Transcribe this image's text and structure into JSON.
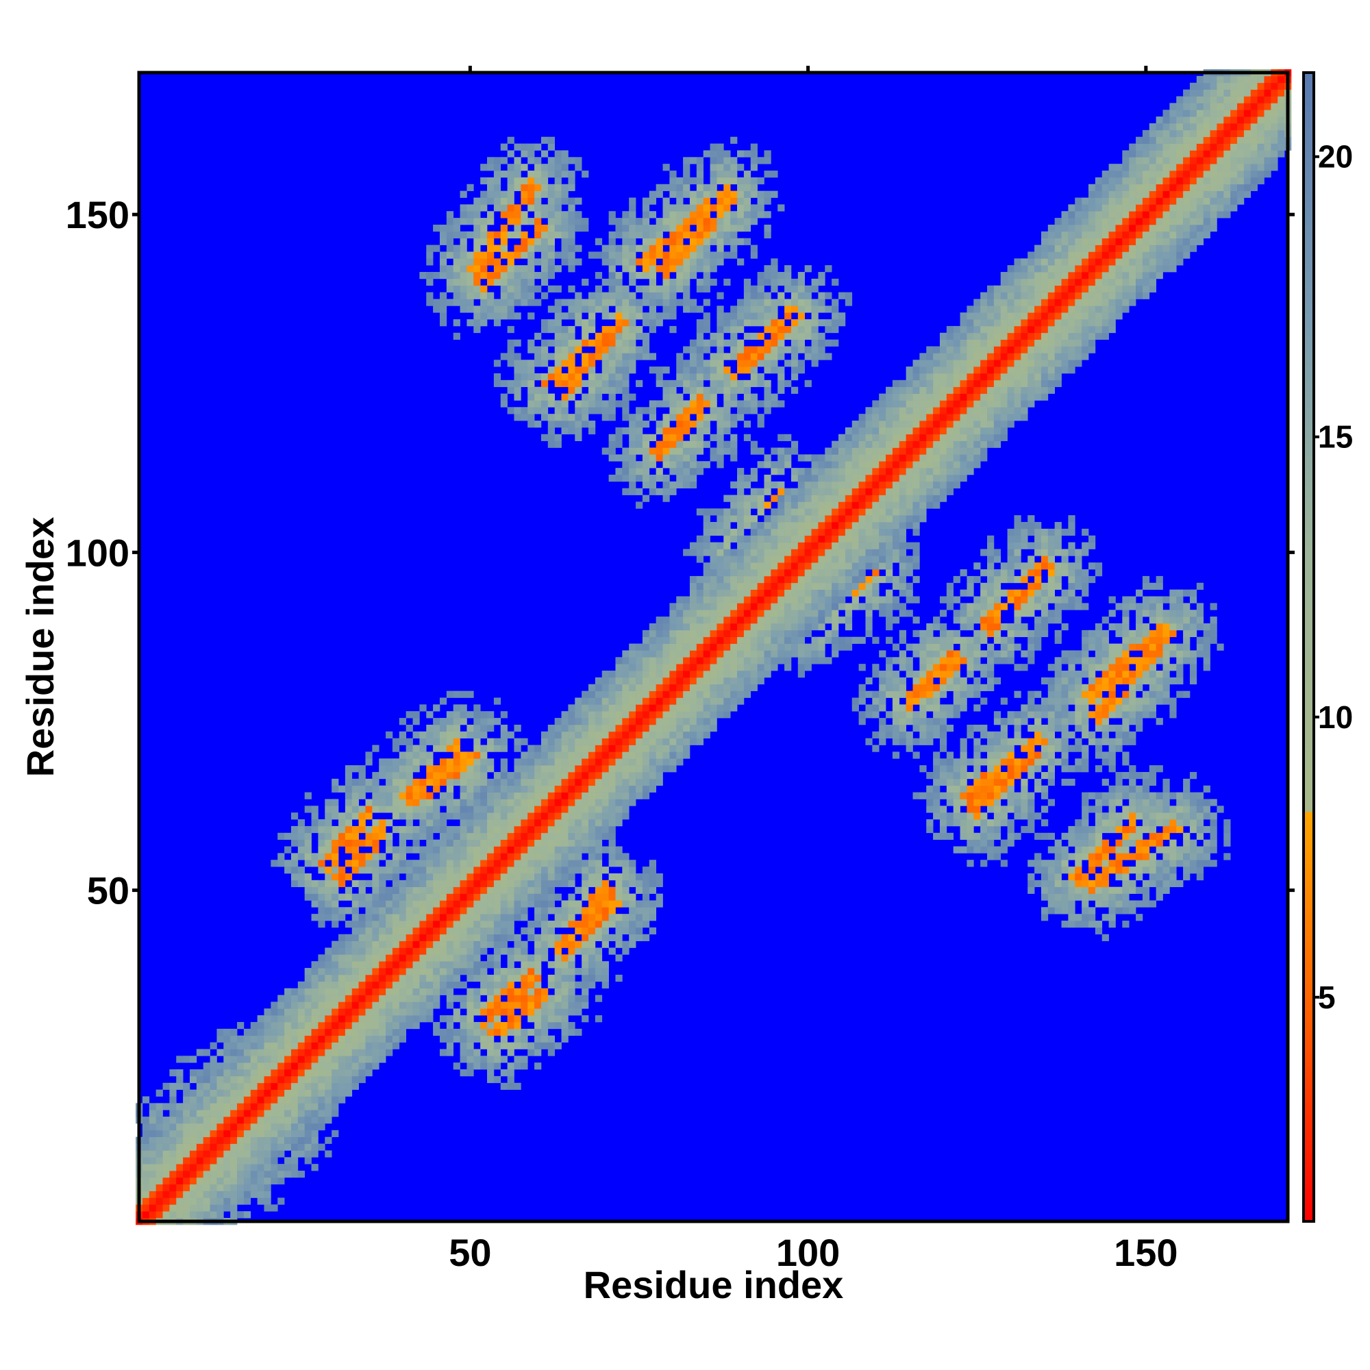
{
  "chart_data": {
    "type": "heatmap",
    "title": "",
    "xlabel": "Residue index",
    "ylabel": "Residue index",
    "n_residues": 171,
    "xlim": [
      1,
      171
    ],
    "ylim": [
      1,
      171
    ],
    "x_ticks": [
      50,
      100,
      150
    ],
    "y_ticks": [
      50,
      100,
      150
    ],
    "colorbar": {
      "range": [
        1,
        21.5
      ],
      "ticks": [
        5,
        10,
        15,
        20
      ],
      "stops": [
        {
          "value": 1.0,
          "color": "#ff0000"
        },
        {
          "value": 4.5,
          "color": "#ff5a00"
        },
        {
          "value": 8.3,
          "color": "#ffa500"
        },
        {
          "value": 8.31,
          "color": "#a8b88a"
        },
        {
          "value": 13.0,
          "color": "#9db59a"
        },
        {
          "value": 17.0,
          "color": "#7a9cb0"
        },
        {
          "value": 21.5,
          "color": "#5a7ab0"
        }
      ],
      "background_color": "#0000ff",
      "cutoff": 20
    },
    "structure": {
      "description_of_values": "Residue–residue distance matrix (symmetric); values above cutoff shown blue",
      "diagonal_band_halfwidth": 2,
      "contact_segments": [
        {
          "i": [
            3,
            16
          ],
          "j": [
            9,
            22
          ],
          "value": 6.5
        },
        {
          "i": [
            29,
            35
          ],
          "j": [
            54,
            61
          ],
          "value": 7.0
        },
        {
          "i": [
            41,
            48
          ],
          "j": [
            64,
            71
          ],
          "value": 7.0
        },
        {
          "i": [
            52,
            59
          ],
          "j": [
            31,
            37
          ],
          "value": 7.0
        },
        {
          "i": [
            64,
            70
          ],
          "j": [
            42,
            50
          ],
          "value": 7.0
        },
        {
          "i": [
            51,
            59
          ],
          "j": [
            142,
            154
          ],
          "value": 6.5
        },
        {
          "i": [
            62,
            70
          ],
          "j": [
            125,
            133
          ],
          "value": 6.5
        },
        {
          "i": [
            76,
            88
          ],
          "j": [
            143,
            153
          ],
          "value": 6.5
        },
        {
          "i": [
            90,
            98
          ],
          "j": [
            127,
            135
          ],
          "value": 6.5
        },
        {
          "i": [
            78,
            84
          ],
          "j": [
            115,
            121
          ],
          "value": 6.5
        },
        {
          "i": [
            91,
            99
          ],
          "j": [
            101,
            108
          ],
          "value": 6.5
        },
        {
          "i": [
            100,
            109
          ],
          "j": [
            90,
            97
          ],
          "value": 6.5
        },
        {
          "i": [
            115,
            122
          ],
          "j": [
            78,
            84
          ],
          "value": 6.5
        },
        {
          "i": [
            124,
            134
          ],
          "j": [
            64,
            72
          ],
          "value": 6.5
        },
        {
          "i": [
            127,
            135
          ],
          "j": [
            89,
            97
          ],
          "value": 6.5
        },
        {
          "i": [
            142,
            152
          ],
          "j": [
            79,
            88
          ],
          "value": 6.5
        },
        {
          "i": [
            140,
            148
          ],
          "j": [
            52,
            60
          ],
          "value": 6.5
        }
      ]
    }
  }
}
